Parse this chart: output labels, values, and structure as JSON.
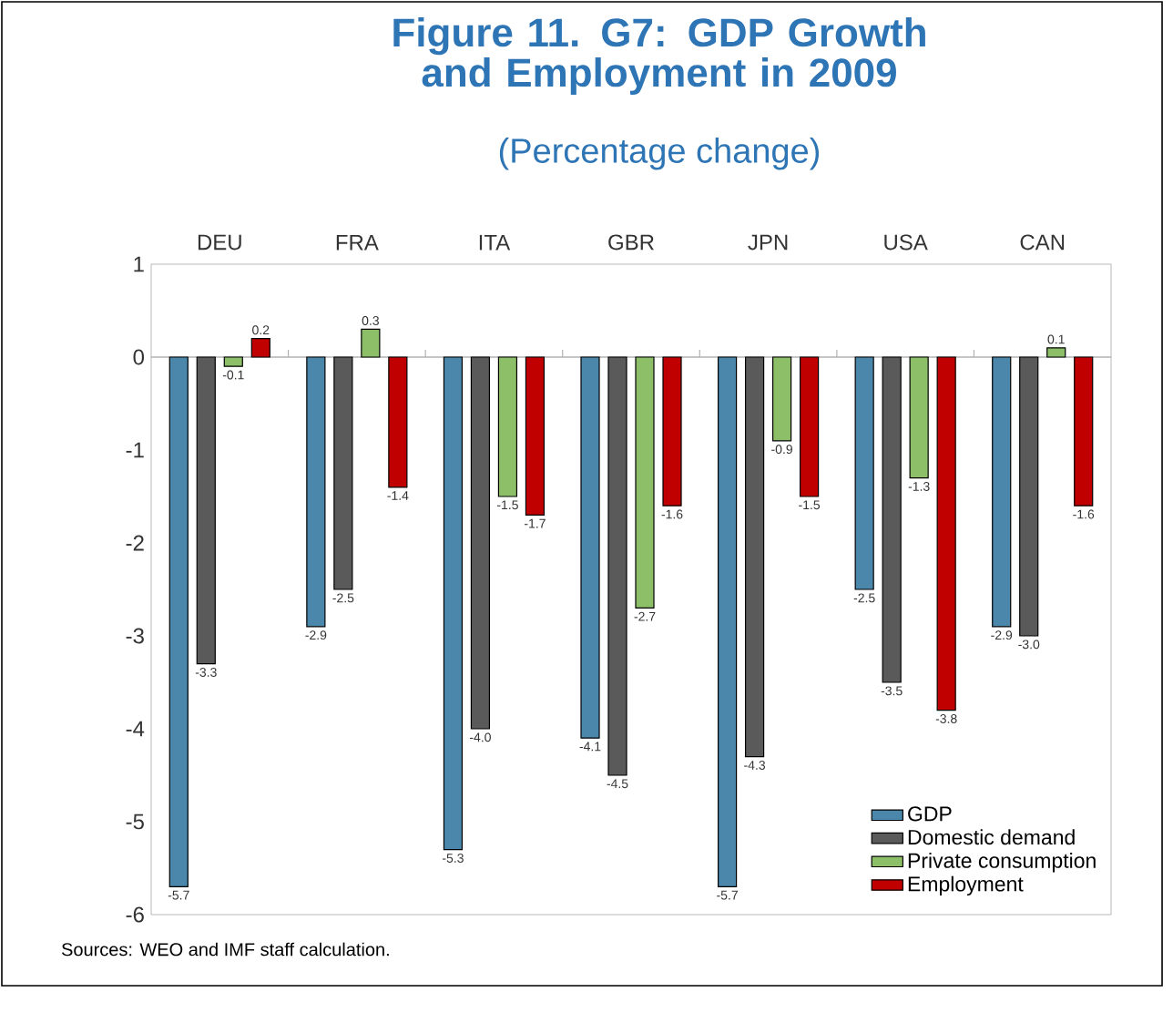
{
  "chart_data": {
    "type": "bar",
    "title": "Figure 11. G7: GDP Growth and Employment in 2009",
    "subtitle": "(Percentage change)",
    "categories": [
      "DEU",
      "FRA",
      "ITA",
      "GBR",
      "JPN",
      "USA",
      "CAN"
    ],
    "series": [
      {
        "name": "GDP",
        "color": "#4a87aa",
        "values": [
          -5.7,
          -2.9,
          -5.3,
          -4.1,
          -5.7,
          -2.5,
          -2.9
        ],
        "value_labels": [
          "-5.7",
          "-2.9",
          "-5.3",
          "-4.1",
          "-5.7",
          "-2.5",
          "-2.9"
        ]
      },
      {
        "name": "Domestic demand",
        "color": "#5a5a5a",
        "values": [
          -3.3,
          -2.5,
          -4.0,
          -4.5,
          -4.3,
          -3.5,
          -3.0
        ],
        "value_labels": [
          "-3.3",
          "-2.5",
          "-4.0",
          "-4.5",
          "-4.3",
          "-3.5",
          "-3.0"
        ]
      },
      {
        "name": "Private consumption",
        "color": "#8cbf68",
        "values": [
          -0.1,
          0.3,
          -1.5,
          -2.7,
          -0.9,
          -1.3,
          0.1
        ],
        "value_labels": [
          "-0.1",
          "0.3",
          "-1.5",
          "-2.7",
          "-0.9",
          "-1.3",
          "0.1"
        ]
      },
      {
        "name": "Employment",
        "color": "#c00000",
        "values": [
          0.2,
          -1.4,
          -1.7,
          -1.6,
          -1.5,
          -3.8,
          -1.6
        ],
        "value_labels": [
          "0.2",
          "-1.4",
          "-1.7",
          "-1.6",
          "-1.5",
          "-3.8",
          "-1.6"
        ]
      }
    ],
    "ylim": [
      -6,
      1
    ],
    "yticks": [
      -6,
      -5,
      -4,
      -3,
      -2,
      -1,
      0,
      1
    ],
    "legend": "bottom right",
    "annotations": [
      "Sources: WEO and IMF staff calculation."
    ]
  }
}
